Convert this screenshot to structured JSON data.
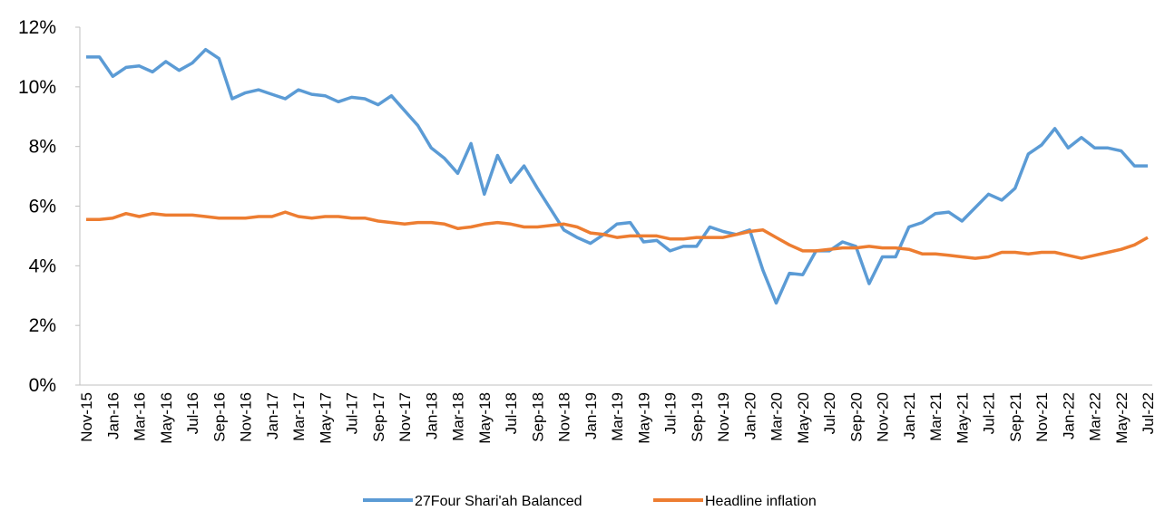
{
  "chart_data": {
    "type": "line",
    "categories": [
      "Nov-15",
      null,
      "Jan-16",
      null,
      "Mar-16",
      null,
      "May-16",
      null,
      "Jul-16",
      null,
      "Sep-16",
      null,
      "Nov-16",
      null,
      "Jan-17",
      null,
      "Mar-17",
      null,
      "May-17",
      null,
      "Jul-17",
      null,
      "Sep-17",
      null,
      "Nov-17",
      null,
      "Jan-18",
      null,
      "Mar-18",
      null,
      "May-18",
      null,
      "Jul-18",
      null,
      "Sep-18",
      null,
      "Nov-18",
      null,
      "Jan-19",
      null,
      "Mar-19",
      null,
      "May-19",
      null,
      "Jul-19",
      null,
      "Sep-19",
      null,
      "Nov-19",
      null,
      "Jan-20",
      null,
      "Mar-20",
      null,
      "May-20",
      null,
      "Jul-20",
      null,
      "Sep-20",
      null,
      "Nov-20",
      null,
      "Jan-21",
      null,
      "Mar-21",
      null,
      "May-21",
      null,
      "Jul-21",
      null,
      "Sep-21",
      null,
      "Nov-21",
      null,
      "Jan-22",
      null,
      "Mar-22",
      null,
      "May-22",
      null,
      "Jul-22"
    ],
    "series": [
      {
        "name": "27Four Shari'ah Balanced",
        "color": "#5b9bd5",
        "values": [
          11.0,
          11.0,
          10.35,
          10.65,
          10.7,
          10.5,
          10.85,
          10.55,
          10.8,
          11.25,
          10.95,
          9.6,
          9.8,
          9.9,
          9.75,
          9.6,
          9.9,
          9.75,
          9.7,
          9.5,
          9.65,
          9.6,
          9.4,
          9.7,
          9.2,
          8.7,
          7.95,
          7.6,
          7.1,
          8.1,
          6.4,
          7.7,
          6.8,
          7.35,
          6.6,
          5.9,
          5.2,
          4.95,
          4.75,
          5.05,
          5.4,
          5.45,
          4.8,
          4.85,
          4.5,
          4.65,
          4.65,
          5.3,
          5.15,
          5.05,
          5.2,
          3.85,
          2.75,
          3.75,
          3.7,
          4.5,
          4.5,
          4.8,
          4.65,
          3.4,
          4.3,
          4.3,
          5.3,
          5.45,
          5.75,
          5.8,
          5.5,
          5.95,
          6.4,
          6.2,
          6.6,
          7.75,
          8.05,
          8.6,
          7.95,
          8.3,
          7.95,
          7.95,
          7.85,
          7.35,
          7.35
        ]
      },
      {
        "name": "Headline inflation",
        "color": "#ed7d31",
        "values": [
          5.55,
          5.55,
          5.6,
          5.75,
          5.65,
          5.75,
          5.7,
          5.7,
          5.7,
          5.65,
          5.6,
          5.6,
          5.6,
          5.65,
          5.65,
          5.8,
          5.65,
          5.6,
          5.65,
          5.65,
          5.6,
          5.6,
          5.5,
          5.45,
          5.4,
          5.45,
          5.45,
          5.4,
          5.25,
          5.3,
          5.4,
          5.45,
          5.4,
          5.3,
          5.3,
          5.35,
          5.4,
          5.3,
          5.1,
          5.05,
          4.95,
          5.0,
          5.0,
          5.0,
          4.9,
          4.9,
          4.95,
          4.95,
          4.95,
          5.05,
          5.15,
          5.2,
          4.95,
          4.7,
          4.5,
          4.5,
          4.55,
          4.6,
          4.6,
          4.65,
          4.6,
          4.6,
          4.55,
          4.4,
          4.4,
          4.35,
          4.3,
          4.25,
          4.3,
          4.45,
          4.45,
          4.4,
          4.45,
          4.45,
          4.35,
          4.25,
          4.35,
          4.45,
          4.55,
          4.7,
          4.95
        ]
      }
    ],
    "ylim": [
      0,
      12
    ],
    "yticks": [
      {
        "value": 0,
        "label": "0%"
      },
      {
        "value": 2,
        "label": "2%"
      },
      {
        "value": 4,
        "label": "4%"
      },
      {
        "value": 6,
        "label": "6%"
      },
      {
        "value": 8,
        "label": "8%"
      },
      {
        "value": 10,
        "label": "10%"
      },
      {
        "value": 12,
        "label": "12%"
      }
    ],
    "grid": false,
    "legend": "bottom"
  }
}
